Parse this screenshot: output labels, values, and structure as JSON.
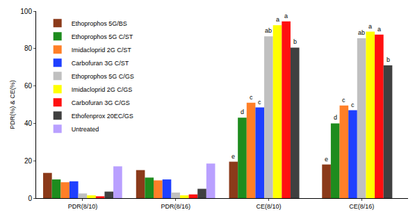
{
  "chart_data": {
    "type": "bar",
    "y_label": "PDR(%) & CE(%)",
    "categories": [
      "PDR(8/10)",
      "PDR(8/16)",
      "CE(8/10)",
      "CE(8/16)"
    ],
    "series": [
      {
        "name": "Ethoprophos 5G/BS",
        "color": "#8b3a1a",
        "values": [
          13.5,
          15,
          19.5,
          18
        ]
      },
      {
        "name": "Ethoprophos 5G C/ST",
        "color": "#1e8c1e",
        "values": [
          10,
          11,
          43,
          40
        ]
      },
      {
        "name": "Imidacloprid 2G C/ST",
        "color": "#ff7f27",
        "values": [
          8.5,
          9.5,
          51,
          49.5
        ]
      },
      {
        "name": "Carbofuran 3G C/ST",
        "color": "#1f3fff",
        "values": [
          9,
          10,
          48.5,
          47
        ]
      },
      {
        "name": "Ethoprophos 5G C/GS",
        "color": "#c0c0c0",
        "values": [
          2.5,
          3,
          86.5,
          85.5
        ]
      },
      {
        "name": "Imidacloprid 2G C/GS",
        "color": "#ffff00",
        "values": [
          1.5,
          1.5,
          92.5,
          89
        ]
      },
      {
        "name": "Carbofuran 3G C/GS",
        "color": "#ff1010",
        "values": [
          1,
          2,
          94.5,
          87.5
        ]
      },
      {
        "name": "Ethofenprox 20EC/GS",
        "color": "#404040",
        "values": [
          3.5,
          5,
          80.5,
          71
        ]
      },
      {
        "name": "Untreated",
        "color": "#b9a0ff",
        "values": [
          17,
          18.5,
          null,
          null
        ]
      }
    ],
    "annotations": [
      {
        "text": "e",
        "category": "CE(8/10)",
        "series": "Ethoprophos 5G/BS"
      },
      {
        "text": "d",
        "category": "CE(8/10)",
        "series": "Ethoprophos 5G C/ST"
      },
      {
        "text": "c",
        "category": "CE(8/10)",
        "series": "Imidacloprid 2G C/ST"
      },
      {
        "text": "c",
        "category": "CE(8/10)",
        "series": "Carbofuran 3G C/ST"
      },
      {
        "text": "ab",
        "category": "CE(8/10)",
        "series": "Ethoprophos 5G C/GS"
      },
      {
        "text": "a",
        "category": "CE(8/10)",
        "series": "Imidacloprid 2G C/GS"
      },
      {
        "text": "a",
        "category": "CE(8/10)",
        "series": "Carbofuran 3G C/GS"
      },
      {
        "text": "b",
        "category": "CE(8/10)",
        "series": "Ethofenprox 20EC/GS"
      },
      {
        "text": "e",
        "category": "CE(8/16)",
        "series": "Ethoprophos 5G/BS"
      },
      {
        "text": "d",
        "category": "CE(8/16)",
        "series": "Ethoprophos 5G C/ST"
      },
      {
        "text": "c",
        "category": "CE(8/16)",
        "series": "Imidacloprid 2G C/ST"
      },
      {
        "text": "c",
        "category": "CE(8/16)",
        "series": "Carbofuran 3G C/ST"
      },
      {
        "text": "ab",
        "category": "CE(8/16)",
        "series": "Ethoprophos 5G C/GS"
      },
      {
        "text": "a",
        "category": "CE(8/16)",
        "series": "Imidacloprid 2G C/GS"
      },
      {
        "text": "a",
        "category": "CE(8/16)",
        "series": "Carbofuran 3G C/GS"
      },
      {
        "text": "b",
        "category": "CE(8/16)",
        "series": "Ethofenprox 20EC/GS"
      }
    ],
    "ylim": [
      0,
      100
    ],
    "yticks": [
      0,
      20,
      40,
      60,
      80,
      100
    ],
    "grid": false,
    "legend": "upper left"
  }
}
